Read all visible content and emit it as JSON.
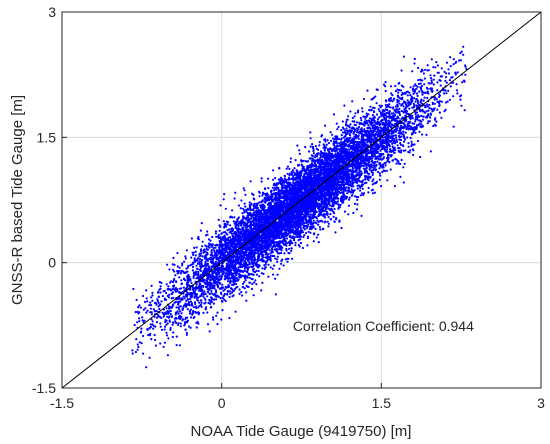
{
  "chart_data": {
    "type": "scatter",
    "title": "",
    "xlabel": "NOAA Tide Gauge (9419750) [m]",
    "ylabel": "GNSS-R based Tide Gauge [m]",
    "xlim": [
      -1.5,
      3
    ],
    "ylim": [
      -1.5,
      3
    ],
    "xticks": [
      -1.5,
      0,
      1.5,
      3
    ],
    "yticks": [
      -1.5,
      0,
      1.5,
      3
    ],
    "xtick_labels": [
      "-1.5",
      "0",
      "1.5",
      "3"
    ],
    "ytick_labels": [
      "-1.5",
      "0",
      "1.5",
      "3"
    ],
    "grid": true,
    "reference_line": {
      "from": [
        -1.5,
        -1.5
      ],
      "to": [
        3,
        3
      ],
      "color": "#000000"
    },
    "annotation": {
      "text": "Correlation Coefficient: 0.944",
      "x": 0.8,
      "y": -0.7
    },
    "series": [
      {
        "marker_color": "#0000ff",
        "distribution": {
          "count": 9000,
          "x_range": [
            -0.85,
            2.3
          ],
          "mean": 0.72,
          "x_sd": 0.6,
          "residual_sd": 0.22,
          "slope": 1.0,
          "y_max": 2.7
        }
      }
    ]
  }
}
